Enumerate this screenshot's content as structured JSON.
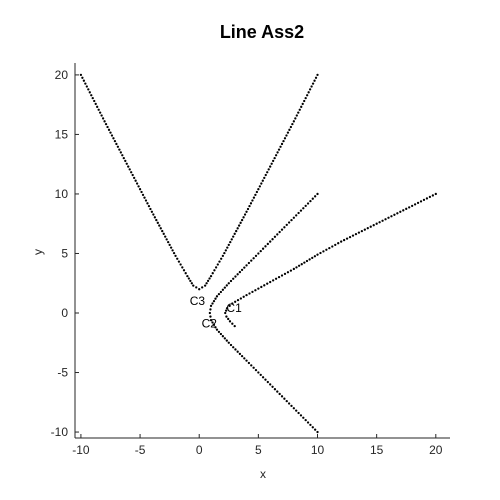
{
  "chart_data": {
    "type": "scatter",
    "title": "Line Ass2",
    "xlabel": "x",
    "ylabel": "y",
    "xlim": [
      -10.5,
      21.2
    ],
    "ylim": [
      -10.5,
      21
    ],
    "xticks": [
      -10,
      -5,
      0,
      5,
      10,
      15,
      20
    ],
    "yticks": [
      -10,
      -5,
      0,
      5,
      10,
      15,
      20
    ],
    "grid": false,
    "legend": "none",
    "marker_color": "#000000",
    "series": [
      {
        "label": "C1",
        "label_pos": [
          2.3,
          0.4
        ],
        "points": [
          [
            3.0,
            -1.1
          ],
          [
            2.6,
            -0.7
          ],
          [
            2.3,
            -0.3
          ],
          [
            2.2,
            0.0
          ],
          [
            2.35,
            0.4
          ],
          [
            2.8,
            0.8
          ],
          [
            4.0,
            1.5
          ],
          [
            6.0,
            2.6
          ],
          [
            8.0,
            3.7
          ],
          [
            10.0,
            4.9
          ],
          [
            12.0,
            6.0
          ],
          [
            14.0,
            7.0
          ],
          [
            16.0,
            8.0
          ],
          [
            18.0,
            9.0
          ],
          [
            20.0,
            10.0
          ]
        ]
      },
      {
        "label": "C2",
        "label_pos": [
          0.2,
          -0.9
        ],
        "points": [
          [
            10.0,
            10.0
          ],
          [
            8.0,
            8.0
          ],
          [
            6.0,
            6.0
          ],
          [
            4.0,
            4.0
          ],
          [
            2.5,
            2.5
          ],
          [
            1.5,
            1.4
          ],
          [
            1.0,
            0.6
          ],
          [
            0.9,
            0.0
          ],
          [
            1.0,
            -0.6
          ],
          [
            1.5,
            -1.4
          ],
          [
            2.5,
            -2.5
          ],
          [
            4.0,
            -4.0
          ],
          [
            6.0,
            -6.0
          ],
          [
            8.0,
            -8.0
          ],
          [
            10.0,
            -10.0
          ]
        ]
      },
      {
        "label": "C3",
        "label_pos": [
          -0.8,
          1.0
        ],
        "points": [
          [
            -10.0,
            20.0
          ],
          [
            -8.0,
            16.1
          ],
          [
            -6.0,
            12.3
          ],
          [
            -4.0,
            8.5
          ],
          [
            -2.0,
            4.8
          ],
          [
            -1.0,
            3.1
          ],
          [
            -0.5,
            2.3
          ],
          [
            0.0,
            2.0
          ],
          [
            0.5,
            2.3
          ],
          [
            1.0,
            3.1
          ],
          [
            2.0,
            4.8
          ],
          [
            4.0,
            8.5
          ],
          [
            6.0,
            12.3
          ],
          [
            8.0,
            16.1
          ],
          [
            10.0,
            20.0
          ]
        ]
      }
    ]
  }
}
